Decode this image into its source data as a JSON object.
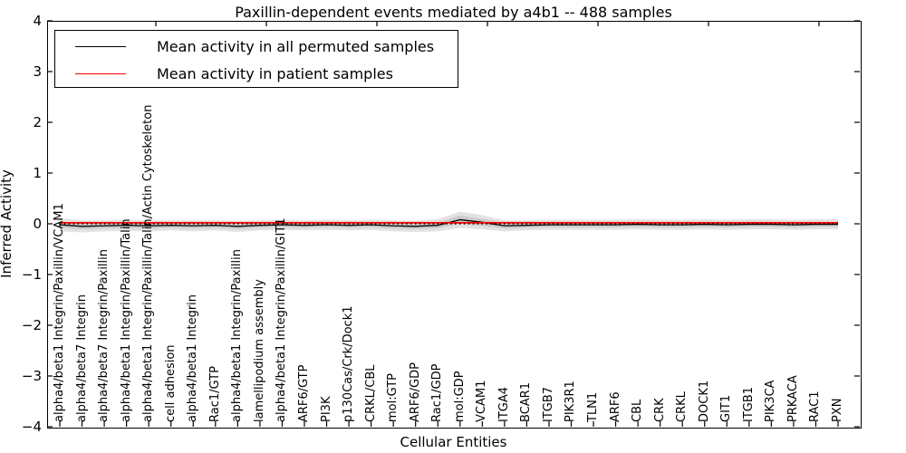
{
  "figure": {
    "title": "Paxillin-dependent events mediated by a4b1 -- 488 samples",
    "xlabel": "Cellular Entities",
    "ylabel": "Inferred Activity"
  },
  "legend": {
    "items": [
      {
        "label": "Mean activity in all permuted samples",
        "color": "#000000"
      },
      {
        "label": "Mean activity in patient samples",
        "color": "#ff0000"
      }
    ]
  },
  "chart_data": {
    "type": "line",
    "title": "Paxillin-dependent events mediated by a4b1 -- 488 samples",
    "xlabel": "Cellular Entities",
    "ylabel": "Inferred Activity",
    "ylim": [
      -4,
      4
    ],
    "yticks": [
      4,
      3,
      2,
      1,
      0,
      -1,
      -2,
      -3,
      -4
    ],
    "grid": false,
    "legend_position": "upper left",
    "categories": [
      "alpha4/beta1 Integrin/Paxillin/VCAM1",
      "alpha4/beta7 Integrin",
      "alpha4/beta7 Integrin/Paxillin",
      "alpha4/beta1 Integrin/Paxillin/Talin",
      "alpha4/beta1 Integrin/Paxillin/Talin/Actin Cytoskeleton",
      "cell adhesion",
      "alpha4/beta1 Integrin",
      "Rac1/GTP",
      "alpha4/beta1 Integrin/Paxillin",
      "lamellipodium assembly",
      "alpha4/beta1 Integrin/Paxillin/GIT1",
      "ARF6/GTP",
      "PI3K",
      "p130Cas/Crk/Dock1",
      "CRKL/CBL",
      "mol:GTP",
      "ARF6/GDP",
      "Rac1/GDP",
      "mol:GDP",
      "VCAM1",
      "ITGA4",
      "BCAR1",
      "ITGB7",
      "PIK3R1",
      "TLN1",
      "ARF6",
      "CBL",
      "CRK",
      "CRKL",
      "DOCK1",
      "GIT1",
      "ITGB1",
      "PIK3CA",
      "PRKACA",
      "RAC1",
      "PXN"
    ],
    "series": [
      {
        "name": "Mean activity in all permuted samples",
        "color": "#000000",
        "values": [
          -0.02,
          -0.05,
          -0.04,
          -0.03,
          -0.04,
          -0.03,
          -0.04,
          -0.03,
          -0.05,
          -0.03,
          -0.02,
          -0.03,
          -0.02,
          -0.03,
          -0.02,
          -0.04,
          -0.05,
          -0.03,
          0.08,
          0.03,
          -0.04,
          -0.03,
          -0.02,
          -0.02,
          -0.02,
          -0.02,
          -0.01,
          -0.02,
          -0.02,
          -0.01,
          -0.02,
          -0.01,
          -0.01,
          -0.02,
          -0.01,
          -0.01
        ]
      },
      {
        "name": "Mean activity in patient samples",
        "color": "#ff0000",
        "values": [
          0.02,
          0.02,
          0.02,
          0.02,
          0.02,
          0.02,
          0.02,
          0.02,
          0.02,
          0.02,
          0.02,
          0.02,
          0.02,
          0.02,
          0.02,
          0.02,
          0.02,
          0.02,
          0.02,
          0.02,
          0.02,
          0.02,
          0.02,
          0.02,
          0.02,
          0.02,
          0.02,
          0.02,
          0.02,
          0.02,
          0.02,
          0.02,
          0.02,
          0.02,
          0.02,
          0.02
        ]
      }
    ],
    "band": {
      "around_series": "Mean activity in all permuted samples",
      "halfwidths": [
        0.13,
        0.12,
        0.11,
        0.11,
        0.11,
        0.1,
        0.11,
        0.1,
        0.11,
        0.1,
        0.1,
        0.1,
        0.1,
        0.1,
        0.1,
        0.11,
        0.11,
        0.12,
        0.16,
        0.14,
        0.11,
        0.1,
        0.1,
        0.1,
        0.1,
        0.1,
        0.1,
        0.1,
        0.1,
        0.1,
        0.1,
        0.1,
        0.1,
        0.1,
        0.1,
        0.1
      ],
      "color": "#e2e2e2"
    },
    "zero_line": {
      "value": 0,
      "style": "dotted",
      "color": "#000000"
    }
  }
}
